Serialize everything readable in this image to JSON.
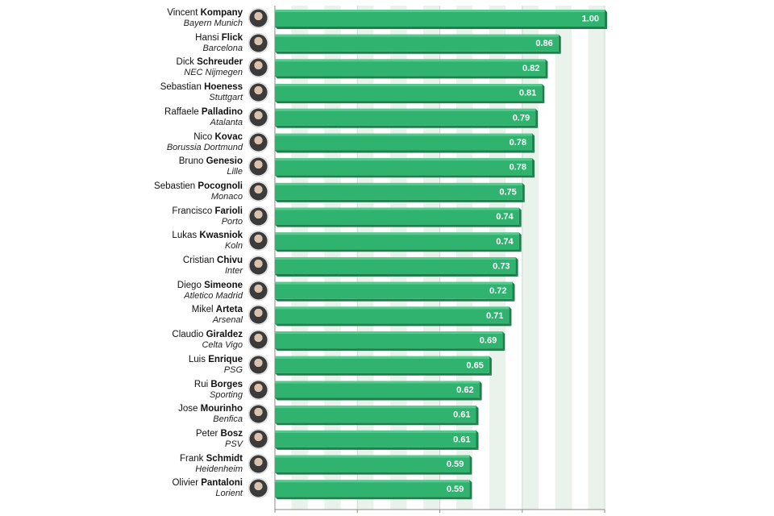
{
  "chart_data": {
    "type": "bar",
    "orientation": "horizontal",
    "xlim": [
      0,
      1.0
    ],
    "grid": true,
    "bar_color": "#2fb36f",
    "bar_color_dark": "#1f7e4c",
    "grid_band_color": "#e9f3ec",
    "label_color": "#ffffff",
    "rows": [
      {
        "first": "Vincent",
        "last": "Kompany",
        "team": "Bayern Munich",
        "value": 1.0,
        "label": "1.00"
      },
      {
        "first": "Hansi",
        "last": "Flick",
        "team": "Barcelona",
        "value": 0.86,
        "label": "0.86"
      },
      {
        "first": "Dick",
        "last": "Schreuder",
        "team": "NEC Nijmegen",
        "value": 0.82,
        "label": "0.82"
      },
      {
        "first": "Sebastian",
        "last": "Hoeness",
        "team": "Stuttgart",
        "value": 0.81,
        "label": "0.81"
      },
      {
        "first": "Raffaele",
        "last": "Palladino",
        "team": "Atalanta",
        "value": 0.79,
        "label": "0.79"
      },
      {
        "first": "Nico",
        "last": "Kovac",
        "team": "Borussia Dortmund",
        "value": 0.78,
        "label": "0.78"
      },
      {
        "first": "Bruno",
        "last": "Genesio",
        "team": "Lille",
        "value": 0.78,
        "label": "0.78"
      },
      {
        "first": "Sebastien",
        "last": "Pocognoli",
        "team": "Monaco",
        "value": 0.75,
        "label": "0.75"
      },
      {
        "first": "Francisco",
        "last": "Farioli",
        "team": "Porto",
        "value": 0.74,
        "label": "0.74"
      },
      {
        "first": "Lukas",
        "last": "Kwasniok",
        "team": "Koln",
        "value": 0.74,
        "label": "0.74"
      },
      {
        "first": "Cristian",
        "last": "Chivu",
        "team": "Inter",
        "value": 0.73,
        "label": "0.73"
      },
      {
        "first": "Diego",
        "last": "Simeone",
        "team": "Atletico Madrid",
        "value": 0.72,
        "label": "0.72"
      },
      {
        "first": "Mikel",
        "last": "Arteta",
        "team": "Arsenal",
        "value": 0.71,
        "label": "0.71"
      },
      {
        "first": "Claudio",
        "last": "Giraldez",
        "team": "Celta Vigo",
        "value": 0.69,
        "label": "0.69"
      },
      {
        "first": "Luis",
        "last": "Enrique",
        "team": "PSG",
        "value": 0.65,
        "label": "0.65"
      },
      {
        "first": "Rui",
        "last": "Borges",
        "team": "Sporting",
        "value": 0.62,
        "label": "0.62"
      },
      {
        "first": "Jose",
        "last": "Mourinho",
        "team": "Benfica",
        "value": 0.61,
        "label": "0.61"
      },
      {
        "first": "Peter",
        "last": "Bosz",
        "team": "PSV",
        "value": 0.61,
        "label": "0.61"
      },
      {
        "first": "Frank",
        "last": "Schmidt",
        "team": "Heidenheim",
        "value": 0.59,
        "label": "0.59"
      },
      {
        "first": "Olivier",
        "last": "Pantaloni",
        "team": "Lorient",
        "value": 0.59,
        "label": "0.59"
      }
    ]
  }
}
